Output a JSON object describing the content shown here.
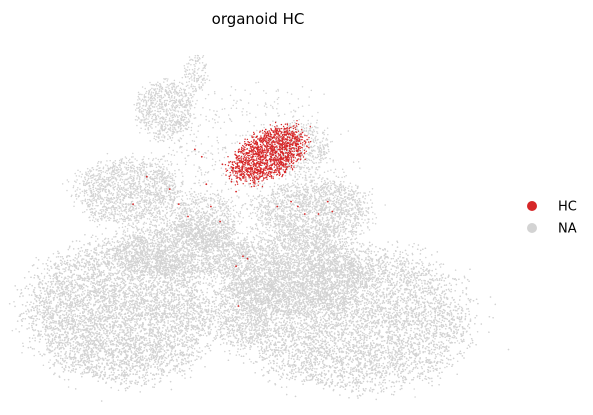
{
  "chart_data": {
    "type": "scatter",
    "title": "organoid HC",
    "xlabel": "",
    "ylabel": "",
    "grid": false,
    "axes_visible": false,
    "legend": {
      "placement": "right",
      "entries": [
        {
          "label": "HC",
          "color": "#d62728"
        },
        {
          "label": "NA",
          "color": "#d3d3d3"
        }
      ]
    },
    "xlim": [
      0,
      100
    ],
    "ylim": [
      0,
      70
    ],
    "series": [
      {
        "name": "NA",
        "color": "#d3d3d3",
        "regions": [
          {
            "kind": "ellipse",
            "cx": 29.5,
            "cy": 56.0,
            "rx": 6.3,
            "ry": 5.8,
            "density": 0.5
          },
          {
            "kind": "ellipse",
            "cx": 36.2,
            "cy": 63.5,
            "rx": 2.4,
            "ry": 3.8,
            "density": 0.35
          },
          {
            "kind": "ellipse",
            "cx": 21.5,
            "cy": 39.5,
            "rx": 11.5,
            "ry": 6.5,
            "density": 0.5
          },
          {
            "kind": "ellipse",
            "cx": 38.5,
            "cy": 33.5,
            "rx": 6.5,
            "ry": 5.5,
            "density": 0.45
          },
          {
            "kind": "ellipse",
            "cx": 62.0,
            "cy": 35.5,
            "rx": 12.5,
            "ry": 6.5,
            "density": 0.5
          },
          {
            "kind": "ellipse",
            "cx": 58.5,
            "cy": 48.0,
            "rx": 6.5,
            "ry": 5.5,
            "density": 0.3
          },
          {
            "kind": "ellipse",
            "cx": 33.0,
            "cy": 28.0,
            "rx": 14.5,
            "ry": 5.5,
            "density": 0.55
          },
          {
            "kind": "ellipse",
            "cx": 20.0,
            "cy": 15.5,
            "rx": 20.0,
            "ry": 14.0,
            "density": 1.0
          },
          {
            "kind": "ellipse",
            "cx": 70.5,
            "cy": 14.0,
            "rx": 25.0,
            "ry": 14.0,
            "density": 1.0
          },
          {
            "kind": "ellipse",
            "cx": 58.0,
            "cy": 23.0,
            "rx": 16.0,
            "ry": 8.0,
            "density": 0.55
          },
          {
            "kind": "ellipse",
            "cx": 46.0,
            "cy": 15.0,
            "rx": 6.0,
            "ry": 7.0,
            "density": 0.35
          },
          {
            "kind": "ellipse",
            "cx": 48.0,
            "cy": 40.0,
            "rx": 22.0,
            "ry": 20.0,
            "density": 0.06
          }
        ]
      },
      {
        "name": "HC",
        "color": "#d62728",
        "regions": [
          {
            "kind": "ellipse",
            "cx": 52.0,
            "cy": 47.0,
            "rx": 8.8,
            "ry": 4.6,
            "rotation_deg": -28,
            "density": 1.0
          }
        ],
        "scattered": [
          [
            36.0,
            48.0
          ],
          [
            37.5,
            46.5
          ],
          [
            42.0,
            45.0
          ],
          [
            44.0,
            41.5
          ],
          [
            45.0,
            39.5
          ],
          [
            38.5,
            41.0
          ],
          [
            25.5,
            42.5
          ],
          [
            22.5,
            37.0
          ],
          [
            30.5,
            40.0
          ],
          [
            32.5,
            37.0
          ],
          [
            39.5,
            36.5
          ],
          [
            41.5,
            33.5
          ],
          [
            34.5,
            34.5
          ],
          [
            46.5,
            26.5
          ],
          [
            47.5,
            26.0
          ],
          [
            45.0,
            24.5
          ],
          [
            54.0,
            36.5
          ],
          [
            57.0,
            37.5
          ],
          [
            58.5,
            36.5
          ],
          [
            60.0,
            35.0
          ],
          [
            63.0,
            35.0
          ],
          [
            66.0,
            35.5
          ],
          [
            65.0,
            37.5
          ],
          [
            45.5,
            16.5
          ]
        ]
      }
    ]
  }
}
